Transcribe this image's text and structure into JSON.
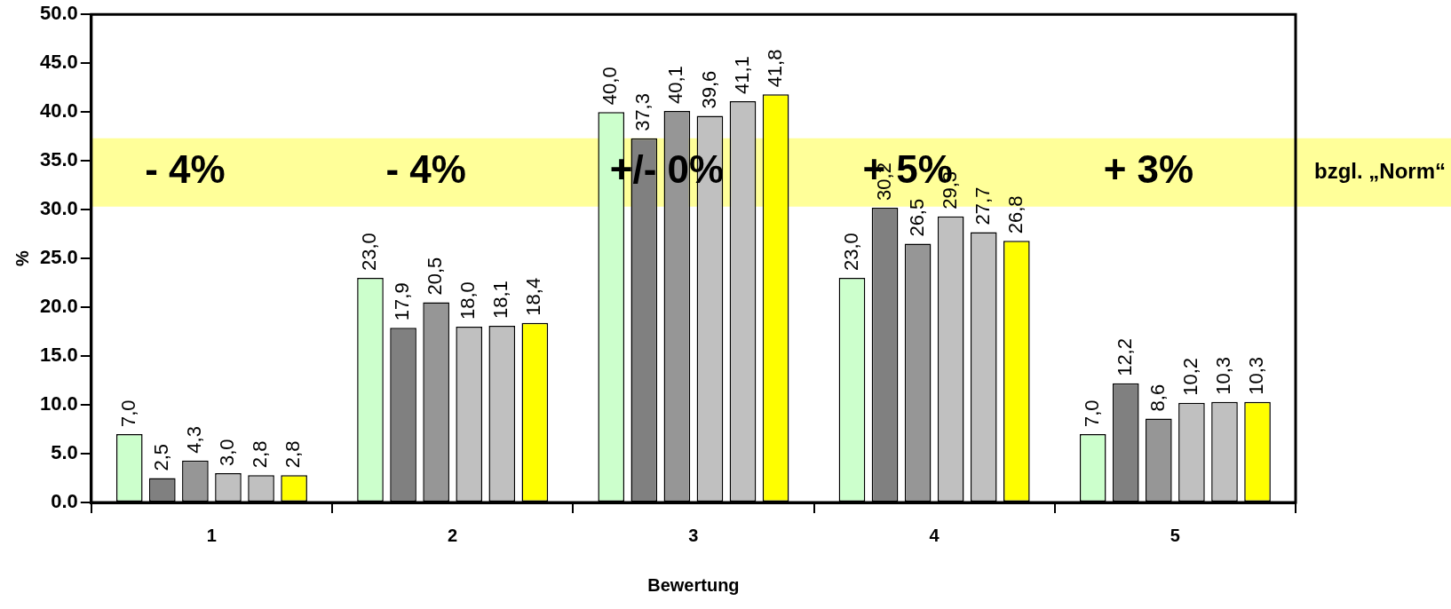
{
  "chart_data": {
    "type": "bar",
    "xlabel": "Bewertung",
    "ylabel": "%",
    "categories": [
      "1",
      "2",
      "3",
      "4",
      "5"
    ],
    "series": [
      {
        "color": "#ccffcc",
        "values": [
          7.0,
          23.0,
          40.0,
          23.0,
          7.0
        ],
        "value_labels": [
          "7,0",
          "23,0",
          "40,0",
          "23,0",
          "7,0"
        ]
      },
      {
        "color": "#808080",
        "values": [
          2.5,
          17.9,
          37.3,
          30.2,
          12.2
        ],
        "value_labels": [
          "2,5",
          "17,9",
          "37,3",
          "30,2",
          "12,2"
        ]
      },
      {
        "color": "#969696",
        "values": [
          4.3,
          20.5,
          40.1,
          26.5,
          8.6
        ],
        "value_labels": [
          "4,3",
          "20,5",
          "40,1",
          "26,5",
          "8,6"
        ]
      },
      {
        "color": "#c0c0c0",
        "values": [
          3.0,
          18.0,
          39.6,
          29.3,
          10.2
        ],
        "value_labels": [
          "3,0",
          "18,0",
          "39,6",
          "29,3",
          "10,2"
        ]
      },
      {
        "color": "#c0c0c0",
        "values": [
          2.8,
          18.1,
          41.1,
          27.7,
          10.3
        ],
        "value_labels": [
          "2,8",
          "18,1",
          "41,1",
          "27,7",
          "10,3"
        ]
      },
      {
        "color": "#ffff00",
        "values": [
          2.8,
          18.4,
          41.8,
          26.8,
          10.3
        ],
        "value_labels": [
          "2,8",
          "18,4",
          "41,8",
          "26,8",
          "10,3"
        ]
      }
    ],
    "ylim": [
      0,
      50
    ],
    "yticks": [
      {
        "value": 0,
        "label": "0.0"
      },
      {
        "value": 5,
        "label": "5.0"
      },
      {
        "value": 10,
        "label": "10.0"
      },
      {
        "value": 15,
        "label": "15.0"
      },
      {
        "value": 20,
        "label": "20.0"
      },
      {
        "value": 25,
        "label": "25.0"
      },
      {
        "value": 30,
        "label": "30.0"
      },
      {
        "value": 35,
        "label": "35.0"
      },
      {
        "value": 40,
        "label": "40.0"
      },
      {
        "value": 45,
        "label": "45.0"
      },
      {
        "value": 50,
        "label": "50.0"
      }
    ],
    "bands": [
      {
        "axis": "y",
        "from": 30.3,
        "to": 37.3,
        "color": "#ffff99"
      }
    ],
    "annotations": [
      "- 4%",
      "- 4%",
      "+/- 0%",
      "+ 5%",
      "+ 3%",
      "bzgl. „Norm“"
    ],
    "grid": false,
    "legend": false
  }
}
